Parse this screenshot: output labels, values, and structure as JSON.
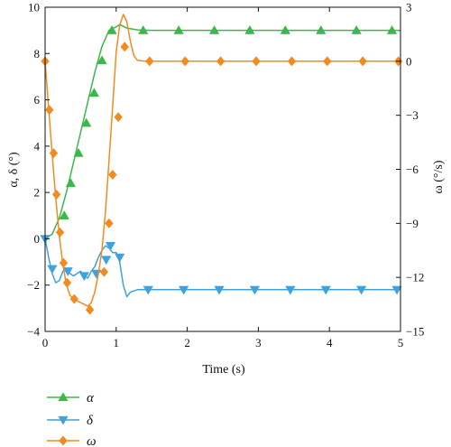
{
  "chart_data": {
    "type": "line",
    "xlabel": "Time (s)",
    "ylabel_left": "α, δ (°)",
    "ylabel_right": "ω (°/s)",
    "xlim": [
      0,
      5
    ],
    "ylim_left": [
      -4,
      10
    ],
    "ylim_right": [
      -15,
      3
    ],
    "x_ticks": [
      "0",
      "1",
      "2",
      "3",
      "4",
      "5"
    ],
    "y_left_ticks": [
      "−4",
      "−2",
      "0",
      "2",
      "4",
      "6",
      "8",
      "10"
    ],
    "y_right_ticks": [
      "−15",
      "−12",
      "−9",
      "−6",
      "−3",
      "0",
      "3"
    ],
    "grid": false,
    "legend_position": "below",
    "series": [
      {
        "name": "α",
        "axis": "left",
        "color": "#3cb84a",
        "marker": "triangle-up",
        "x": [
          0,
          0.1,
          0.2,
          0.3,
          0.4,
          0.5,
          0.6,
          0.7,
          0.8,
          0.9,
          1.0,
          1.05,
          1.15,
          1.3,
          1.5,
          2.0,
          2.5,
          3.0,
          3.5,
          4.0,
          4.5,
          5.0
        ],
        "values": [
          0,
          0.2,
          0.9,
          2.0,
          3.3,
          4.6,
          5.9,
          7.2,
          8.3,
          9.0,
          9.15,
          9.25,
          9.1,
          9.02,
          9.0,
          9.0,
          9.0,
          9.0,
          9.0,
          9.0,
          9.0,
          9.0
        ],
        "marker_x": [
          0.27,
          0.36,
          0.47,
          0.58,
          0.69,
          0.8,
          0.94,
          1.38,
          1.88,
          2.38,
          2.88,
          3.38,
          3.88,
          4.38,
          4.88
        ],
        "marker_values": [
          1.0,
          2.4,
          3.7,
          5.0,
          6.3,
          7.7,
          9.0,
          9.0,
          9.0,
          9.0,
          9.0,
          9.0,
          9.0,
          9.0,
          9.0
        ]
      },
      {
        "name": "δ",
        "axis": "left",
        "color": "#3fa2dc",
        "marker": "triangle-down",
        "x": [
          0,
          0.05,
          0.1,
          0.15,
          0.2,
          0.25,
          0.3,
          0.35,
          0.4,
          0.45,
          0.5,
          0.55,
          0.6,
          0.65,
          0.7,
          0.75,
          0.8,
          0.85,
          0.9,
          0.95,
          1.0,
          1.05,
          1.1,
          1.15,
          1.2,
          1.3,
          1.5,
          2.0,
          2.5,
          3.0,
          3.5,
          4.0,
          4.5,
          5.0
        ],
        "values": [
          0,
          -0.8,
          -1.5,
          -1.9,
          -1.8,
          -1.4,
          -1.3,
          -1.5,
          -1.6,
          -1.5,
          -1.4,
          -1.6,
          -1.7,
          -1.4,
          -1.2,
          -0.8,
          -0.5,
          -0.3,
          -0.4,
          -0.6,
          -0.6,
          -1.0,
          -2.0,
          -2.5,
          -2.3,
          -2.2,
          -2.2,
          -2.2,
          -2.2,
          -2.2,
          -2.2,
          -2.2,
          -2.2,
          -2.2
        ],
        "marker_x": [
          0,
          0.1,
          0.32,
          0.55,
          0.72,
          0.86,
          0.92,
          1.05,
          1.45,
          1.95,
          2.45,
          2.95,
          3.45,
          3.95,
          4.45,
          4.95
        ],
        "marker_values": [
          0,
          -1.3,
          -1.4,
          -1.6,
          -1.5,
          -0.9,
          -0.3,
          -0.8,
          -2.2,
          -2.2,
          -2.2,
          -2.2,
          -2.2,
          -2.2,
          -2.2,
          -2.2
        ]
      },
      {
        "name": "ω",
        "axis": "right",
        "color": "#f28a1e",
        "marker": "diamond",
        "x": [
          0,
          0.05,
          0.1,
          0.15,
          0.2,
          0.25,
          0.3,
          0.35,
          0.4,
          0.45,
          0.5,
          0.55,
          0.6,
          0.65,
          0.7,
          0.75,
          0.8,
          0.85,
          0.9,
          0.95,
          1.0,
          1.05,
          1.1,
          1.15,
          1.2,
          1.25,
          1.3,
          1.4,
          1.6,
          2.0,
          2.5,
          3.0,
          3.5,
          4.0,
          4.5,
          5.0
        ],
        "values": [
          0,
          -2.6,
          -5.2,
          -7.6,
          -9.7,
          -11.3,
          -12.4,
          -13.0,
          -13.2,
          -13.3,
          -13.4,
          -13.5,
          -13.6,
          -13.4,
          -12.8,
          -11.8,
          -10.5,
          -8.3,
          -5.5,
          -2.5,
          0.5,
          2.0,
          2.6,
          2.2,
          1.1,
          0.3,
          0.05,
          0,
          0,
          0,
          0,
          0,
          0,
          0,
          0,
          0
        ],
        "marker_x": [
          0,
          0.06,
          0.12,
          0.16,
          0.21,
          0.26,
          0.31,
          0.41,
          0.63,
          0.83,
          0.9,
          0.95,
          1.03,
          1.12,
          1.47,
          1.97,
          2.47,
          2.97,
          3.47,
          3.97,
          4.47,
          4.97
        ],
        "marker_values": [
          0,
          -2.7,
          -5.1,
          -7.4,
          -9.5,
          -11.2,
          -12.3,
          -13.2,
          -13.8,
          -11.7,
          -9.0,
          -6.3,
          -3.1,
          0.8,
          0,
          0,
          0,
          0,
          0,
          0,
          0,
          0
        ]
      }
    ]
  }
}
